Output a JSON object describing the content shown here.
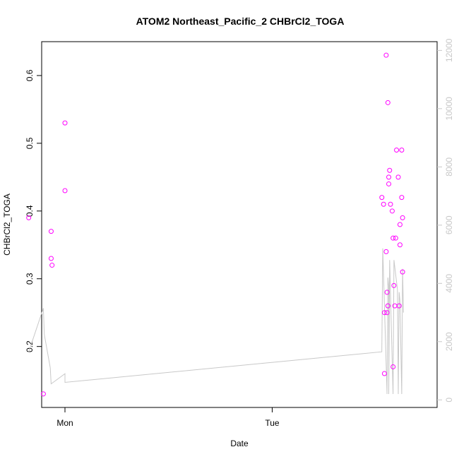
{
  "chart_data": {
    "type": "scatter",
    "title": "ATOM2 Northeast_Pacific_2 CHBrCl2_TOGA",
    "xlabel": "Date",
    "ylabel": "CHBrCl2_TOGA",
    "x_ticks": [
      "Mon",
      "Tue"
    ],
    "x_axis": "Sunday 21:30 to Tuesday 22:30 (hours, Monday 00:00 = 24)",
    "xlim": [
      21.3,
      67.1
    ],
    "ylim": [
      0.11,
      0.65
    ],
    "y_ticks": [
      0.2,
      0.3,
      0.4,
      0.5,
      0.6
    ],
    "y2lim": [
      -260,
      12300
    ],
    "y2_ticks": [
      0,
      2000,
      4000,
      6000,
      8000,
      10000,
      12000
    ],
    "series": [
      {
        "kind": "points",
        "color": "#ff00ff",
        "x": [
          19.8,
          21.5,
          22.4,
          22.4,
          22.5,
          24.0,
          24.0,
          60.7,
          60.9,
          61.0,
          61.0,
          61.2,
          61.3,
          61.3,
          61.4,
          61.4,
          61.5,
          61.5,
          61.6,
          61.7,
          61.9,
          62.0,
          62.0,
          62.1,
          62.2,
          62.3,
          62.4,
          62.6,
          62.7,
          62.8,
          62.8,
          63.0,
          63.0,
          63.1,
          63.1
        ],
        "y": [
          0.39,
          0.13,
          0.37,
          0.33,
          0.32,
          0.53,
          0.43,
          0.42,
          0.41,
          0.25,
          0.16,
          0.34,
          0.28,
          0.25,
          0.56,
          0.26,
          0.44,
          0.45,
          0.46,
          0.41,
          0.4,
          0.36,
          0.17,
          0.29,
          0.26,
          0.36,
          0.49,
          0.45,
          0.26,
          0.38,
          0.35,
          0.49,
          0.42,
          0.31,
          0.39
        ]
      },
      {
        "kind": "line",
        "color": "#c8c8c8",
        "axis": "right",
        "x": [
          19.8,
          21.5,
          21.6,
          22.3,
          22.4,
          24.0,
          24.0,
          60.7,
          60.8,
          61.3,
          61.4,
          61.5,
          61.5,
          61.6,
          61.7,
          62.0,
          62.1,
          62.5,
          62.6,
          62.7,
          62.8,
          63.0,
          63.1,
          63.2
        ],
        "y": [
          1650,
          3150,
          2250,
          1100,
          550,
          900,
          600,
          1650,
          5200,
          200,
          4200,
          3900,
          200,
          4800,
          3600,
          200,
          4800,
          3800,
          200,
          3700,
          3400,
          200,
          4500,
          3000
        ]
      },
      {
        "kind": "points",
        "color": "#ff00ff",
        "x": [
          61.2
        ],
        "y": [
          0.63
        ]
      }
    ],
    "grid": false,
    "legend": "none"
  }
}
